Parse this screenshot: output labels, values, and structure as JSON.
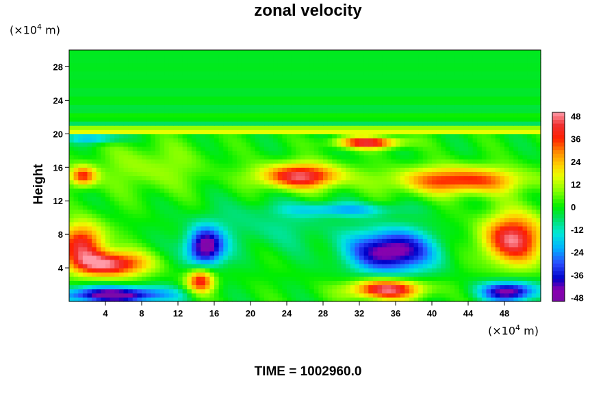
{
  "chart_data": {
    "type": "heatmap",
    "title": "zonal velocity",
    "xlabel": "",
    "ylabel": "Height",
    "x_unit": "(×10⁴ m)",
    "y_unit": "(×10⁴ m)",
    "xlim": [
      0,
      52
    ],
    "ylim": [
      0,
      30
    ],
    "x_ticks": [
      4,
      8,
      12,
      16,
      20,
      24,
      28,
      32,
      36,
      40,
      44,
      48
    ],
    "y_ticks": [
      4,
      8,
      12,
      16,
      20,
      24,
      28
    ],
    "colorbar": {
      "range": [
        -50,
        50
      ],
      "ticks": [
        48,
        36,
        24,
        12,
        0,
        -12,
        -24,
        -36,
        -48
      ]
    },
    "features": [
      {
        "x": 15.0,
        "y": 6.5,
        "value": -50,
        "sx": 2.0,
        "sy": 2.3
      },
      {
        "x": 35.5,
        "y": 6.0,
        "value": -50,
        "sx": 4.5,
        "sy": 2.5
      },
      {
        "x": 5.0,
        "y": 0.8,
        "value": -50,
        "sx": 6.0,
        "sy": 1.0
      },
      {
        "x": 48.5,
        "y": 1.2,
        "value": -48,
        "sx": 3.0,
        "sy": 1.2
      },
      {
        "x": 4.5,
        "y": 4.5,
        "value": 48,
        "sx": 4.0,
        "sy": 1.5
      },
      {
        "x": 1.5,
        "y": 7.0,
        "value": 40,
        "sx": 2.5,
        "sy": 2.5
      },
      {
        "x": 49.0,
        "y": 7.5,
        "value": 46,
        "sx": 3.5,
        "sy": 3.0
      },
      {
        "x": 35.0,
        "y": 1.5,
        "value": 48,
        "sx": 4.0,
        "sy": 1.2
      },
      {
        "x": 25.5,
        "y": 15.0,
        "value": 46,
        "sx": 4.5,
        "sy": 1.5
      },
      {
        "x": 43.0,
        "y": 14.5,
        "value": 38,
        "sx": 7.0,
        "sy": 1.6
      },
      {
        "x": 33.0,
        "y": 19.0,
        "value": 44,
        "sx": 3.5,
        "sy": 0.7
      },
      {
        "x": 1.5,
        "y": 15.0,
        "value": 36,
        "sx": 1.5,
        "sy": 1.2
      },
      {
        "x": 14.5,
        "y": 2.5,
        "value": 40,
        "sx": 1.5,
        "sy": 1.5
      },
      {
        "x": 9.0,
        "y": 16.0,
        "value": 10,
        "sx": 6.0,
        "sy": 3.0
      },
      {
        "x": 22.0,
        "y": 9.0,
        "value": -8,
        "sx": 8.0,
        "sy": 3.0
      },
      {
        "x": 30.0,
        "y": 11.0,
        "value": -20,
        "sx": 6.0,
        "sy": 0.8
      },
      {
        "x": 3.0,
        "y": 19.5,
        "value": -22,
        "sx": 3.0,
        "sy": 0.6
      }
    ]
  },
  "footer": {
    "time_label": "TIME = 1002960.0"
  }
}
